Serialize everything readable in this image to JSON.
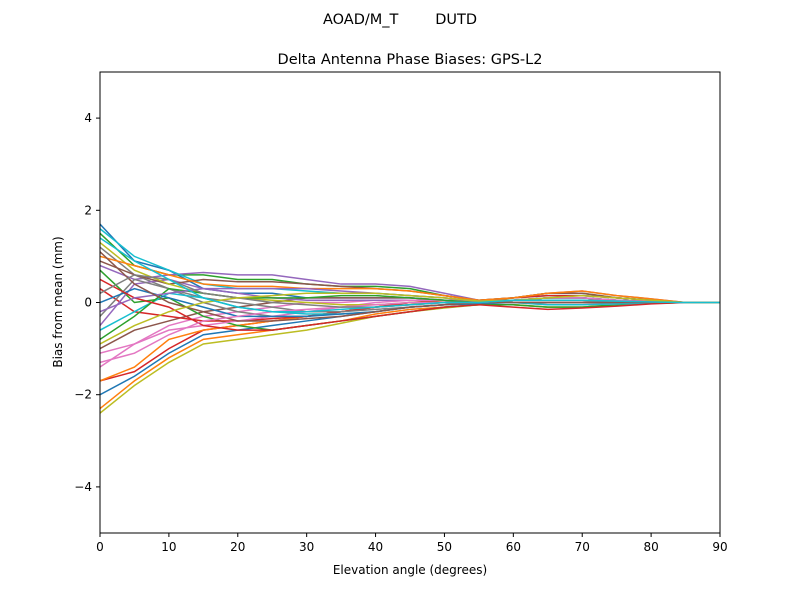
{
  "chart_data": {
    "type": "line",
    "suptitle": "AOAD/M_T        DUTD",
    "title": "Delta Antenna Phase Biases: GPS-L2",
    "xlabel": "Elevation angle (degrees)",
    "ylabel": "Bias from mean (mm)",
    "xlim": [
      0,
      90
    ],
    "ylim": [
      -5,
      5
    ],
    "xticks": [
      0,
      10,
      20,
      30,
      40,
      50,
      60,
      70,
      80,
      90
    ],
    "yticks": [
      -4,
      -2,
      0,
      2,
      4
    ],
    "ytick_labels": [
      "−4",
      "−2",
      "0",
      "2",
      "4"
    ],
    "grid": false,
    "colors": [
      "#1f77b4",
      "#ff7f0e",
      "#2ca02c",
      "#d62728",
      "#9467bd",
      "#8c564b",
      "#e377c2",
      "#7f7f7f",
      "#bcbd22",
      "#17becf"
    ],
    "x": [
      0,
      5,
      10,
      15,
      20,
      25,
      30,
      35,
      40,
      45,
      50,
      55,
      60,
      65,
      70,
      75,
      80,
      85,
      90
    ],
    "series": [
      {
        "values": [
          1.7,
          0.9,
          0.7,
          0.3,
          0.2,
          0.2,
          0.1,
          0.1,
          0.1,
          0.1,
          0.05,
          0,
          0.05,
          0.1,
          0.1,
          0.05,
          0.02,
          0,
          0
        ]
      },
      {
        "values": [
          -2.3,
          -1.7,
          -1.2,
          -0.8,
          -0.7,
          -0.6,
          -0.5,
          -0.4,
          -0.25,
          -0.15,
          -0.1,
          -0.05,
          -0.05,
          -0.1,
          -0.1,
          -0.05,
          -0.02,
          0,
          0
        ]
      },
      {
        "values": [
          1.5,
          0.8,
          0.6,
          0.6,
          0.5,
          0.5,
          0.4,
          0.35,
          0.35,
          0.3,
          0.15,
          0.05,
          0.1,
          0.2,
          0.2,
          0.1,
          0.05,
          0,
          0
        ]
      },
      {
        "values": [
          -1.7,
          -1.5,
          -1.0,
          -0.6,
          -0.5,
          -0.4,
          -0.3,
          -0.2,
          -0.1,
          -0.05,
          0,
          0,
          0.05,
          0.05,
          0.05,
          0.03,
          0.01,
          0,
          0
        ]
      },
      {
        "values": [
          0.8,
          0.5,
          0.6,
          0.65,
          0.6,
          0.6,
          0.5,
          0.4,
          0.4,
          0.35,
          0.2,
          0.05,
          0.1,
          0.2,
          0.25,
          0.15,
          0.08,
          0,
          0
        ]
      },
      {
        "values": [
          -1.0,
          -0.6,
          -0.4,
          -0.2,
          -0.1,
          0,
          0.1,
          0.1,
          0.1,
          0.1,
          0.05,
          0,
          0,
          0,
          0,
          0,
          0,
          0,
          0
        ]
      },
      {
        "values": [
          -1.4,
          -0.9,
          -0.5,
          -0.3,
          -0.2,
          -0.1,
          0,
          0,
          0.05,
          0.05,
          0.05,
          0.02,
          0.05,
          0.05,
          0.05,
          0.03,
          0.01,
          0,
          0
        ]
      },
      {
        "values": [
          1.2,
          0.6,
          0.3,
          0,
          -0.2,
          -0.3,
          -0.3,
          -0.2,
          -0.1,
          0,
          0,
          0,
          0.05,
          0.1,
          0.1,
          0.05,
          0.02,
          0,
          0
        ]
      },
      {
        "values": [
          -2.4,
          -1.8,
          -1.3,
          -0.9,
          -0.8,
          -0.7,
          -0.6,
          -0.45,
          -0.3,
          -0.2,
          -0.12,
          -0.05,
          -0.05,
          -0.1,
          -0.1,
          -0.05,
          -0.02,
          0,
          0
        ]
      },
      {
        "values": [
          1.6,
          1.0,
          0.7,
          0.4,
          0.3,
          0.3,
          0.25,
          0.2,
          0.2,
          0.15,
          0.1,
          0.02,
          0.1,
          0.15,
          0.15,
          0.1,
          0.05,
          0,
          0
        ]
      },
      {
        "values": [
          -2.0,
          -1.6,
          -1.1,
          -0.7,
          -0.6,
          -0.5,
          -0.4,
          -0.3,
          -0.2,
          -0.1,
          -0.05,
          -0.03,
          0,
          0,
          0,
          0,
          0,
          0,
          0
        ]
      },
      {
        "values": [
          -1.7,
          -1.4,
          -0.8,
          -0.6,
          -0.5,
          -0.4,
          -0.3,
          -0.2,
          -0.1,
          0,
          0,
          0,
          0.05,
          0.05,
          0.05,
          0.03,
          0.01,
          0,
          0
        ]
      },
      {
        "values": [
          0.7,
          0.0,
          0.1,
          -0.3,
          -0.5,
          -0.6,
          -0.5,
          -0.4,
          -0.3,
          -0.2,
          -0.1,
          -0.05,
          -0.05,
          -0.1,
          -0.1,
          -0.05,
          -0.02,
          0,
          0
        ]
      },
      {
        "values": [
          0.3,
          -0.2,
          -0.3,
          -0.4,
          -0.4,
          -0.35,
          -0.3,
          -0.2,
          -0.1,
          0,
          0.05,
          0.03,
          0.1,
          0.15,
          0.15,
          0.1,
          0.05,
          0,
          0
        ]
      },
      {
        "values": [
          -0.5,
          0.4,
          0.5,
          0.3,
          0.2,
          0.1,
          0.05,
          0.05,
          0.05,
          0.05,
          0.05,
          0.02,
          0.05,
          0.05,
          0.05,
          0.03,
          0.01,
          0,
          0
        ]
      },
      {
        "values": [
          0.9,
          0.6,
          0.4,
          0.5,
          0.45,
          0.45,
          0.4,
          0.35,
          0.3,
          0.25,
          0.15,
          0.05,
          0.1,
          0.2,
          0.2,
          0.1,
          0.05,
          0,
          0
        ]
      },
      {
        "values": [
          -1.1,
          -0.9,
          -0.6,
          -0.5,
          -0.4,
          -0.3,
          -0.2,
          -0.1,
          0,
          0.05,
          0.05,
          0.02,
          0,
          -0.05,
          -0.05,
          -0.03,
          -0.01,
          0,
          0
        ]
      },
      {
        "values": [
          -0.3,
          0.5,
          0.3,
          0.1,
          0,
          -0.1,
          -0.2,
          -0.2,
          -0.15,
          -0.1,
          -0.05,
          0,
          0,
          0,
          0,
          0,
          0,
          0,
          0
        ]
      },
      {
        "values": [
          1.3,
          0.7,
          0.4,
          0.2,
          0.1,
          0.05,
          0,
          -0.05,
          -0.05,
          0,
          0,
          0,
          0.05,
          0.05,
          0.05,
          0.03,
          0.01,
          0,
          0
        ]
      },
      {
        "values": [
          -0.6,
          -0.2,
          0.2,
          0.1,
          -0.1,
          -0.2,
          -0.25,
          -0.25,
          -0.2,
          -0.1,
          -0.05,
          0,
          0,
          -0.05,
          -0.05,
          -0.03,
          -0.01,
          0,
          0
        ]
      },
      {
        "values": [
          0.0,
          0.3,
          0.1,
          -0.1,
          -0.3,
          -0.3,
          -0.3,
          -0.25,
          -0.2,
          -0.1,
          -0.05,
          0,
          0.05,
          0.1,
          0.1,
          0.05,
          0.02,
          0,
          0
        ]
      },
      {
        "values": [
          1.0,
          0.8,
          0.6,
          0.4,
          0.35,
          0.35,
          0.3,
          0.3,
          0.3,
          0.25,
          0.15,
          0.05,
          0.1,
          0.2,
          0.25,
          0.15,
          0.08,
          0,
          0
        ]
      },
      {
        "values": [
          -0.8,
          -0.3,
          0.3,
          0.2,
          0.1,
          0.1,
          0.1,
          0.15,
          0.15,
          0.1,
          0.05,
          0,
          0.05,
          0.1,
          0.1,
          0.05,
          0.02,
          0,
          0
        ]
      },
      {
        "values": [
          0.5,
          0.1,
          -0.1,
          -0.5,
          -0.6,
          -0.6,
          -0.5,
          -0.4,
          -0.3,
          -0.2,
          -0.1,
          -0.05,
          -0.1,
          -0.15,
          -0.12,
          -0.08,
          -0.03,
          0,
          0
        ]
      },
      {
        "values": [
          -0.2,
          0.1,
          0.2,
          0.3,
          0.3,
          0.3,
          0.3,
          0.25,
          0.2,
          0.15,
          0.1,
          0.03,
          0.05,
          0.1,
          0.1,
          0.05,
          0.02,
          0,
          0
        ]
      },
      {
        "values": [
          1.1,
          0.4,
          0.0,
          -0.2,
          -0.4,
          -0.4,
          -0.35,
          -0.3,
          -0.2,
          -0.1,
          -0.05,
          0,
          0,
          0,
          0,
          0,
          0,
          0,
          0
        ]
      },
      {
        "values": [
          -1.3,
          -1.1,
          -0.7,
          -0.4,
          -0.3,
          -0.2,
          -0.15,
          -0.1,
          -0.05,
          0,
          0,
          0,
          0.05,
          0.1,
          0.1,
          0.05,
          0.02,
          0,
          0
        ]
      },
      {
        "values": [
          0.2,
          0.6,
          0.5,
          0.2,
          0.1,
          0.0,
          -0.05,
          -0.1,
          -0.1,
          -0.05,
          0,
          0,
          0.05,
          0.05,
          0.05,
          0.03,
          0.01,
          0,
          0
        ]
      },
      {
        "values": [
          -0.9,
          -0.5,
          -0.2,
          0.0,
          0.1,
          0.15,
          0.2,
          0.2,
          0.2,
          0.15,
          0.1,
          0.03,
          0.05,
          0.1,
          0.15,
          0.1,
          0.05,
          0,
          0
        ]
      },
      {
        "values": [
          1.4,
          0.9,
          0.5,
          0.1,
          -0.1,
          -0.2,
          -0.2,
          -0.15,
          -0.1,
          -0.05,
          0,
          0,
          0.05,
          0.05,
          0.05,
          0.03,
          0.01,
          0,
          0
        ]
      }
    ]
  }
}
